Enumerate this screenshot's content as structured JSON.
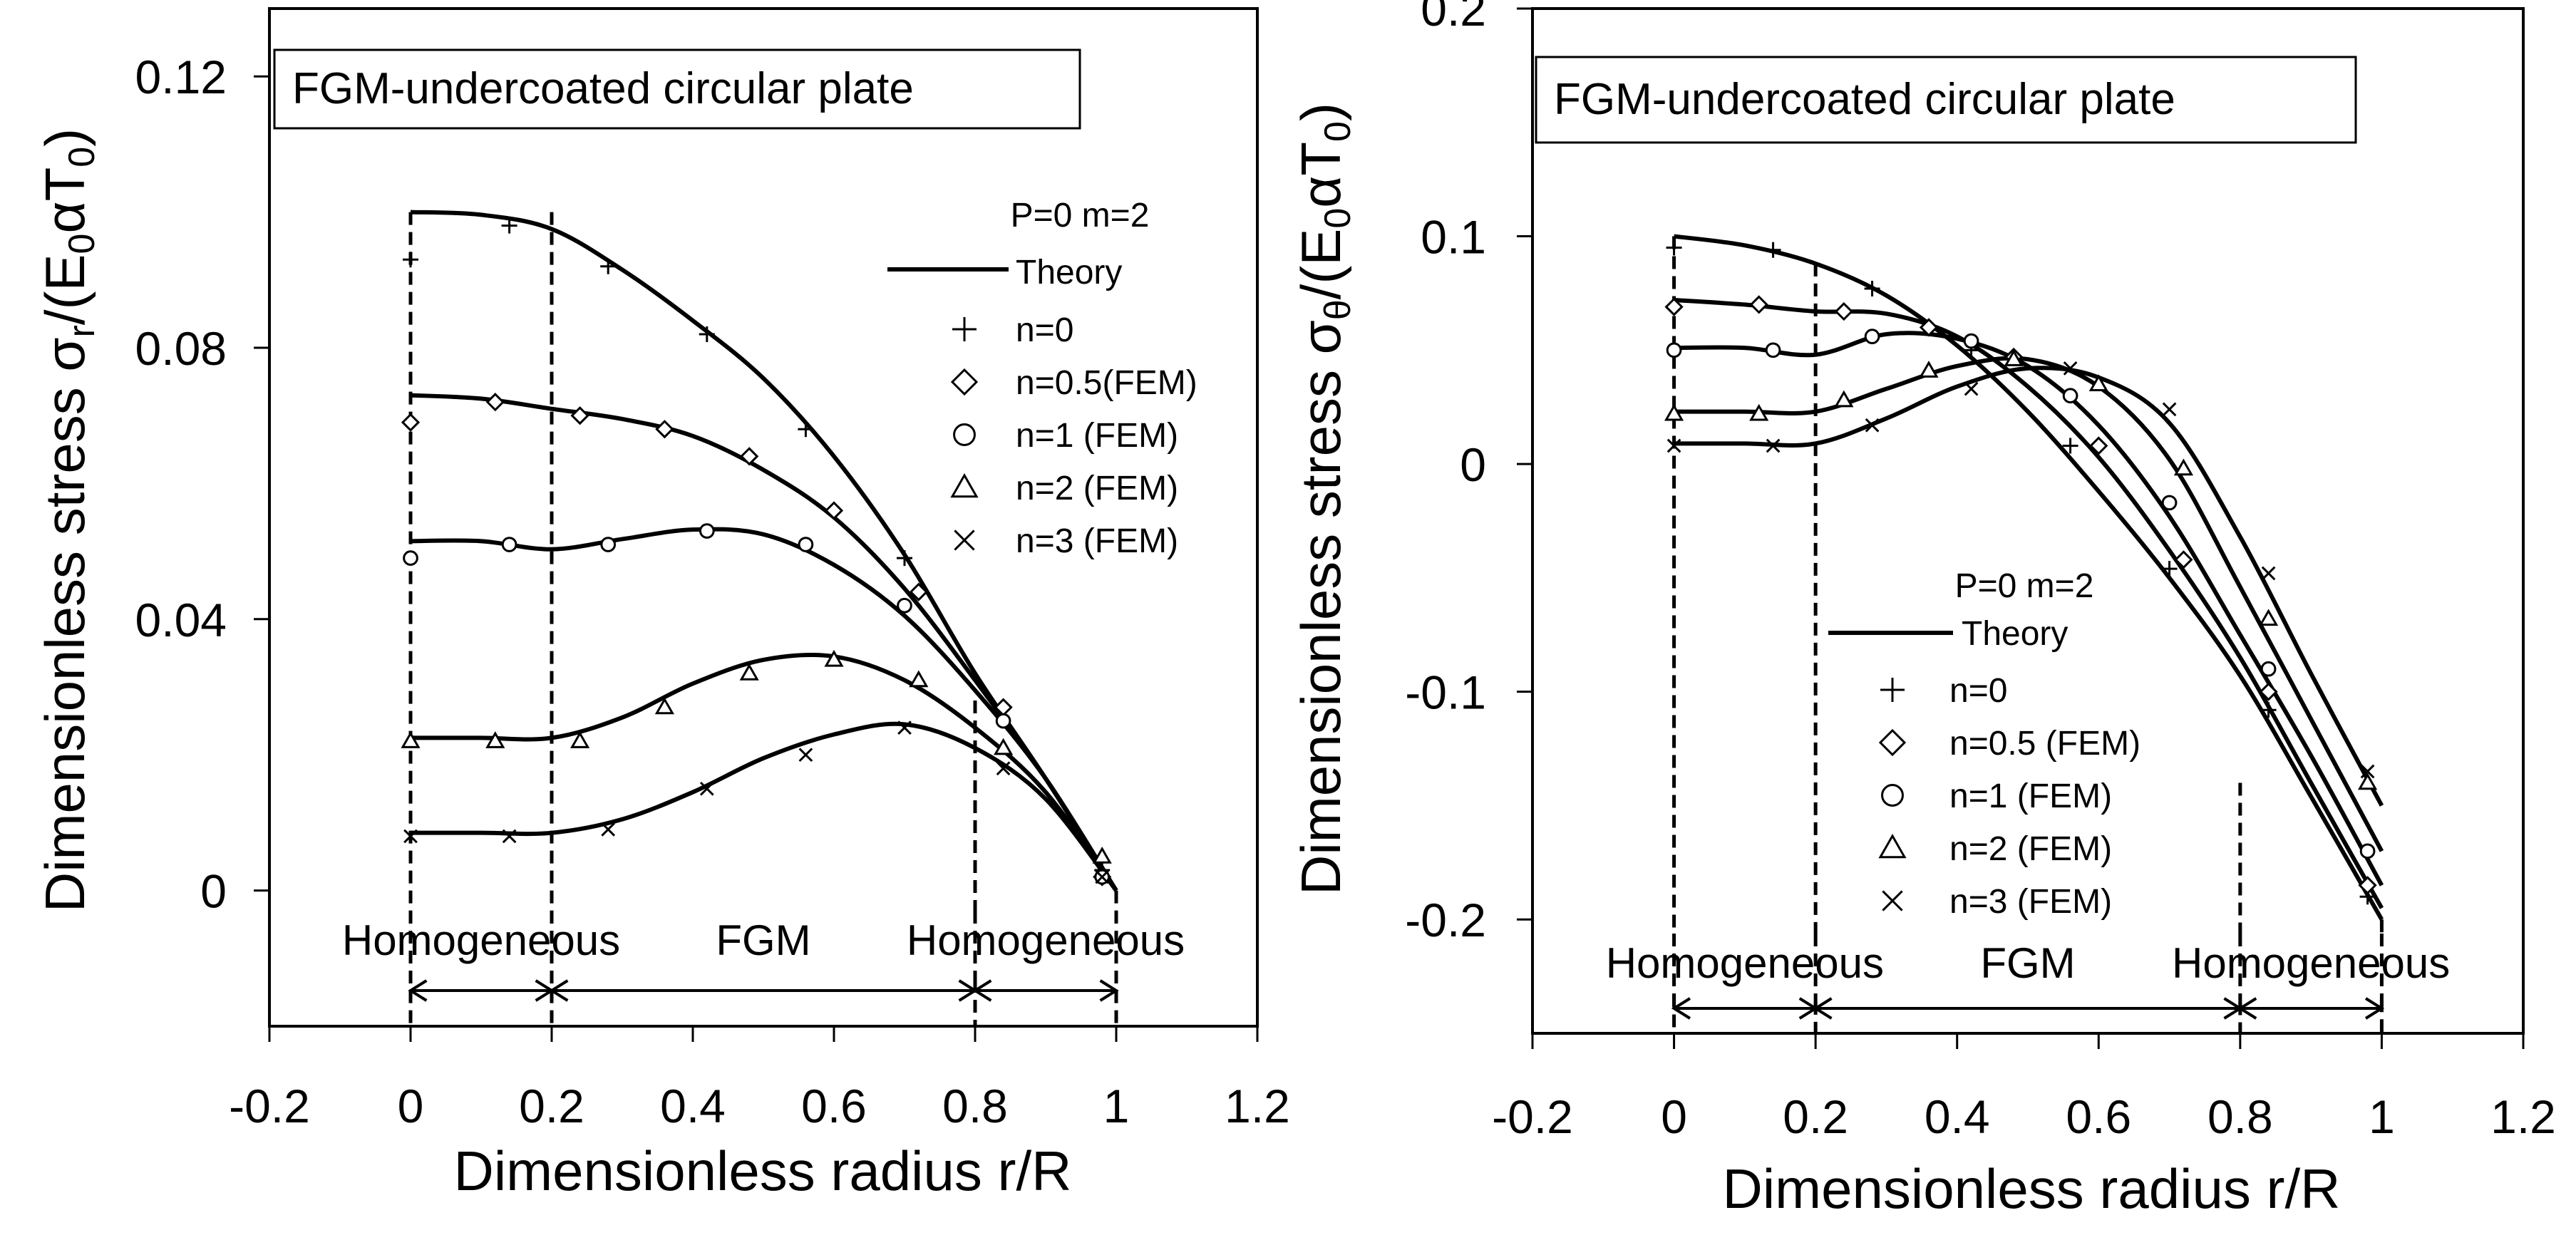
{
  "chart_data": [
    {
      "type": "line",
      "title": "FGM-undercoated circular plate",
      "xlabel": "Dimensionless radius  r/R",
      "ylabel_main": "Dimensionless stress σ",
      "ylabel_sub": "r",
      "ylabel_tail": "/(E",
      "ylabel_sub2": "0",
      "ylabel_alpha": "αT",
      "ylabel_sub3": "0",
      "ylabel_close": ")",
      "xlim": [
        -0.2,
        1.2
      ],
      "ylim": [
        -0.02,
        0.13
      ],
      "xticks": [
        -0.2,
        0,
        0.2,
        0.4,
        0.6,
        0.8,
        1,
        1.2
      ],
      "xtick_labels": [
        "-0.2",
        "0",
        "0.2",
        "0.4",
        "0.6",
        "0.8",
        "1",
        "1.2"
      ],
      "yticks": [
        0,
        0.04,
        0.08,
        0.12
      ],
      "ytick_labels": [
        "0",
        "0.04",
        "0.08",
        "0.12"
      ],
      "legend_header": "P=0  m=2",
      "legend_theory": "Theory",
      "legend_position": "top-right",
      "regions": [
        {
          "label": "Homogeneous",
          "from": 0,
          "to": 0.2
        },
        {
          "label": "FGM",
          "from": 0.2,
          "to": 0.8
        },
        {
          "label": "Homogeneous",
          "from": 0.8,
          "to": 1
        }
      ],
      "series": [
        {
          "name": "n=0",
          "marker": "plus",
          "theory": [
            [
              0,
              0.1
            ],
            [
              0.1,
              0.0996
            ],
            [
              0.2,
              0.0975
            ],
            [
              0.3,
              0.0915
            ],
            [
              0.4,
              0.084
            ],
            [
              0.5,
              0.0755
            ],
            [
              0.6,
              0.064
            ],
            [
              0.7,
              0.0495
            ],
            [
              0.8,
              0.032
            ],
            [
              0.9,
              0.0165
            ],
            [
              1,
              0.0
            ]
          ],
          "fem": [
            [
              0,
              0.093
            ],
            [
              0.14,
              0.098
            ],
            [
              0.28,
              0.092
            ],
            [
              0.42,
              0.082
            ],
            [
              0.56,
              0.068
            ],
            [
              0.7,
              0.049
            ],
            [
              0.84,
              0.027
            ],
            [
              0.98,
              0.003
            ]
          ]
        },
        {
          "name": "n=0.5(FEM)",
          "marker": "diamond",
          "theory": [
            [
              0,
              0.073
            ],
            [
              0.1,
              0.0725
            ],
            [
              0.2,
              0.071
            ],
            [
              0.3,
              0.0695
            ],
            [
              0.4,
              0.067
            ],
            [
              0.5,
              0.062
            ],
            [
              0.6,
              0.055
            ],
            [
              0.7,
              0.0445
            ],
            [
              0.8,
              0.031
            ],
            [
              0.9,
              0.0165
            ],
            [
              1,
              0.0
            ]
          ],
          "fem": [
            [
              0,
              0.069
            ],
            [
              0.12,
              0.072
            ],
            [
              0.24,
              0.07
            ],
            [
              0.36,
              0.068
            ],
            [
              0.48,
              0.064
            ],
            [
              0.6,
              0.056
            ],
            [
              0.72,
              0.044
            ],
            [
              0.84,
              0.027
            ],
            [
              0.98,
              0.002
            ]
          ]
        },
        {
          "name": "n=1 (FEM)",
          "marker": "circle",
          "theory": [
            [
              0,
              0.0515
            ],
            [
              0.1,
              0.0515
            ],
            [
              0.2,
              0.0503
            ],
            [
              0.3,
              0.0518
            ],
            [
              0.4,
              0.0532
            ],
            [
              0.5,
              0.0525
            ],
            [
              0.6,
              0.048
            ],
            [
              0.7,
              0.0405
            ],
            [
              0.8,
              0.0295
            ],
            [
              0.9,
              0.0165
            ],
            [
              1,
              0.0
            ]
          ],
          "fem": [
            [
              0,
              0.049
            ],
            [
              0.14,
              0.051
            ],
            [
              0.28,
              0.051
            ],
            [
              0.42,
              0.053
            ],
            [
              0.56,
              0.051
            ],
            [
              0.7,
              0.042
            ],
            [
              0.84,
              0.025
            ],
            [
              0.98,
              0.002
            ]
          ]
        },
        {
          "name": "n=2 (FEM)",
          "marker": "triangle",
          "theory": [
            [
              0,
              0.0225
            ],
            [
              0.1,
              0.0225
            ],
            [
              0.2,
              0.0225
            ],
            [
              0.3,
              0.0255
            ],
            [
              0.4,
              0.0305
            ],
            [
              0.5,
              0.034
            ],
            [
              0.6,
              0.0345
            ],
            [
              0.7,
              0.031
            ],
            [
              0.8,
              0.024
            ],
            [
              0.9,
              0.0145
            ],
            [
              1,
              0.0
            ]
          ],
          "fem": [
            [
              0,
              0.022
            ],
            [
              0.12,
              0.022
            ],
            [
              0.24,
              0.022
            ],
            [
              0.36,
              0.027
            ],
            [
              0.48,
              0.032
            ],
            [
              0.6,
              0.034
            ],
            [
              0.72,
              0.031
            ],
            [
              0.84,
              0.021
            ],
            [
              0.98,
              0.005
            ]
          ]
        },
        {
          "name": "n=3 (FEM)",
          "marker": "cross",
          "theory": [
            [
              0,
              0.0085
            ],
            [
              0.1,
              0.0085
            ],
            [
              0.2,
              0.0085
            ],
            [
              0.3,
              0.0105
            ],
            [
              0.4,
              0.0145
            ],
            [
              0.5,
              0.0195
            ],
            [
              0.6,
              0.023
            ],
            [
              0.7,
              0.0245
            ],
            [
              0.8,
              0.021
            ],
            [
              0.9,
              0.0135
            ],
            [
              1,
              0.0
            ]
          ],
          "fem": [
            [
              0,
              0.008
            ],
            [
              0.14,
              0.008
            ],
            [
              0.28,
              0.009
            ],
            [
              0.42,
              0.015
            ],
            [
              0.56,
              0.02
            ],
            [
              0.7,
              0.024
            ],
            [
              0.84,
              0.018
            ],
            [
              0.98,
              0.002
            ]
          ]
        }
      ]
    },
    {
      "type": "line",
      "title": "FGM-undercoated circular plate",
      "xlabel": "Dimensionless radius  r/R",
      "ylabel_main": "Dimensionless stress σ",
      "ylabel_sub": "θ",
      "ylabel_tail": "/(E",
      "ylabel_sub2": "0",
      "ylabel_alpha": "αT",
      "ylabel_sub3": "0",
      "ylabel_close": ")",
      "xlim": [
        -0.2,
        1.2
      ],
      "ylim": [
        -0.25,
        0.2
      ],
      "xticks": [
        -0.2,
        0,
        0.2,
        0.4,
        0.6,
        0.8,
        1,
        1.2
      ],
      "xtick_labels": [
        "-0.2",
        "0",
        "0.2",
        "0.4",
        "0.6",
        "0.8",
        "1",
        "1.2"
      ],
      "yticks": [
        -0.2,
        -0.1,
        0,
        0.1,
        0.2
      ],
      "ytick_labels": [
        "-0.2",
        "-0.1",
        "0",
        "0.1",
        "0.2"
      ],
      "legend_header": "P=0  m=2",
      "legend_theory": "Theory",
      "legend_position": "bottom-right",
      "regions": [
        {
          "label": "Homogeneous",
          "from": 0,
          "to": 0.2
        },
        {
          "label": "FGM",
          "from": 0.2,
          "to": 0.8
        },
        {
          "label": "Homogeneous",
          "from": 0.8,
          "to": 1
        }
      ],
      "series": [
        {
          "name": "n=0",
          "marker": "plus",
          "theory": [
            [
              0,
              0.1
            ],
            [
              0.1,
              0.096
            ],
            [
              0.2,
              0.088
            ],
            [
              0.3,
              0.074
            ],
            [
              0.4,
              0.052
            ],
            [
              0.5,
              0.023
            ],
            [
              0.6,
              -0.012
            ],
            [
              0.7,
              -0.05
            ],
            [
              0.8,
              -0.093
            ],
            [
              0.9,
              -0.146
            ],
            [
              1,
              -0.2
            ]
          ],
          "fem": [
            [
              0,
              0.095
            ],
            [
              0.14,
              0.094
            ],
            [
              0.28,
              0.077
            ],
            [
              0.42,
              0.05
            ],
            [
              0.56,
              0.008
            ],
            [
              0.7,
              -0.046
            ],
            [
              0.84,
              -0.108
            ],
            [
              0.98,
              -0.19
            ]
          ]
        },
        {
          "name": "n=0.5 (FEM)",
          "marker": "diamond",
          "theory": [
            [
              0,
              0.072
            ],
            [
              0.1,
              0.07
            ],
            [
              0.2,
              0.067
            ],
            [
              0.3,
              0.066
            ],
            [
              0.4,
              0.056
            ],
            [
              0.5,
              0.034
            ],
            [
              0.6,
              0.003
            ],
            [
              0.7,
              -0.038
            ],
            [
              0.8,
              -0.085
            ],
            [
              0.9,
              -0.14
            ],
            [
              1,
              -0.195
            ]
          ],
          "fem": [
            [
              0,
              0.069
            ],
            [
              0.12,
              0.07
            ],
            [
              0.24,
              0.067
            ],
            [
              0.36,
              0.06
            ],
            [
              0.48,
              0.047
            ],
            [
              0.6,
              0.008
            ],
            [
              0.72,
              -0.042
            ],
            [
              0.84,
              -0.1
            ],
            [
              0.98,
              -0.185
            ]
          ]
        },
        {
          "name": "n=1 (FEM)",
          "marker": "circle",
          "theory": [
            [
              0,
              0.051
            ],
            [
              0.1,
              0.051
            ],
            [
              0.2,
              0.048
            ],
            [
              0.3,
              0.057
            ],
            [
              0.4,
              0.055
            ],
            [
              0.5,
              0.043
            ],
            [
              0.6,
              0.017
            ],
            [
              0.7,
              -0.023
            ],
            [
              0.8,
              -0.075
            ],
            [
              0.9,
              -0.128
            ],
            [
              1,
              -0.185
            ]
          ],
          "fem": [
            [
              0,
              0.05
            ],
            [
              0.14,
              0.05
            ],
            [
              0.28,
              0.056
            ],
            [
              0.42,
              0.054
            ],
            [
              0.56,
              0.03
            ],
            [
              0.7,
              -0.017
            ],
            [
              0.84,
              -0.09
            ],
            [
              0.98,
              -0.17
            ]
          ]
        },
        {
          "name": "n=2 (FEM)",
          "marker": "triangle",
          "theory": [
            [
              0,
              0.023
            ],
            [
              0.1,
              0.023
            ],
            [
              0.2,
              0.023
            ],
            [
              0.3,
              0.033
            ],
            [
              0.4,
              0.043
            ],
            [
              0.5,
              0.046
            ],
            [
              0.6,
              0.034
            ],
            [
              0.7,
              0.002
            ],
            [
              0.8,
              -0.054
            ],
            [
              0.9,
              -0.112
            ],
            [
              1,
              -0.17
            ]
          ],
          "fem": [
            [
              0,
              0.022
            ],
            [
              0.12,
              0.022
            ],
            [
              0.24,
              0.028
            ],
            [
              0.36,
              0.041
            ],
            [
              0.48,
              0.046
            ],
            [
              0.6,
              0.035
            ],
            [
              0.72,
              -0.002
            ],
            [
              0.84,
              -0.068
            ],
            [
              0.98,
              -0.14
            ]
          ]
        },
        {
          "name": "n=3 (FEM)",
          "marker": "cross",
          "theory": [
            [
              0,
              0.009
            ],
            [
              0.1,
              0.009
            ],
            [
              0.2,
              0.009
            ],
            [
              0.3,
              0.02
            ],
            [
              0.4,
              0.034
            ],
            [
              0.5,
              0.042
            ],
            [
              0.6,
              0.038
            ],
            [
              0.7,
              0.018
            ],
            [
              0.8,
              -0.032
            ],
            [
              0.9,
              -0.092
            ],
            [
              1,
              -0.15
            ]
          ],
          "fem": [
            [
              0,
              0.008
            ],
            [
              0.14,
              0.008
            ],
            [
              0.28,
              0.017
            ],
            [
              0.42,
              0.033
            ],
            [
              0.56,
              0.042
            ],
            [
              0.7,
              0.024
            ],
            [
              0.84,
              -0.048
            ],
            [
              0.98,
              -0.135
            ]
          ]
        }
      ]
    }
  ]
}
